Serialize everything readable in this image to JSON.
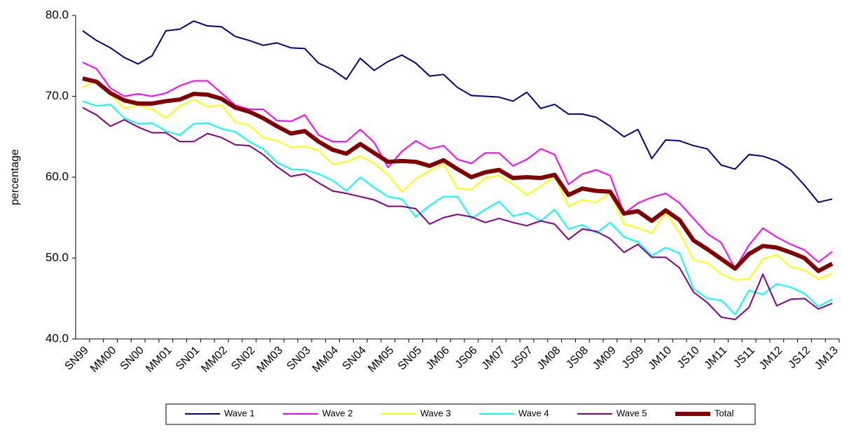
{
  "chart_data": {
    "type": "line",
    "ylabel": "percentage",
    "categories": [
      "SN99",
      null,
      "MM00",
      null,
      "SN00",
      null,
      "MM01",
      null,
      "SN01",
      null,
      "MM02",
      null,
      "SN02",
      null,
      "MM03",
      null,
      "SN03",
      null,
      "MM04",
      null,
      "SN04",
      null,
      "MM05",
      null,
      "SN05",
      null,
      "JM06",
      null,
      "JS06",
      null,
      "JM07",
      null,
      "JS07",
      null,
      "JM08",
      null,
      "JS08",
      null,
      "JM09",
      null,
      "JS09",
      null,
      "JM10",
      null,
      "JS10",
      null,
      "JM11",
      null,
      "JS11",
      null,
      "JM12",
      null,
      "JS12",
      null,
      "JM13"
    ],
    "series": [
      {
        "name": "Wave 1",
        "color": "#000080",
        "width": 2,
        "values": [
          78.1,
          76.9,
          76.0,
          74.8,
          74.0,
          75.0,
          78.1,
          78.3,
          79.3,
          78.7,
          78.6,
          77.4,
          76.9,
          76.3,
          76.6,
          76.0,
          75.9,
          74.1,
          73.3,
          72.1,
          74.7,
          73.2,
          74.3,
          75.1,
          74.1,
          72.5,
          72.7,
          71.1,
          70.1,
          70.0,
          69.9,
          69.4,
          70.5,
          68.5,
          69.0,
          67.8,
          67.8,
          67.4,
          66.3,
          65.0,
          65.9,
          62.3,
          64.6,
          64.5,
          63.9,
          63.5,
          61.5,
          61.0,
          62.8,
          62.6,
          62.0,
          60.9,
          59.0,
          56.9,
          57.3
        ]
      },
      {
        "name": "Wave 2",
        "color": "#ff00ff",
        "width": 2,
        "values": [
          74.2,
          73.4,
          71.0,
          70.0,
          70.3,
          70.0,
          70.4,
          71.3,
          71.9,
          71.9,
          70.4,
          68.9,
          68.4,
          68.4,
          67.0,
          66.9,
          67.7,
          65.2,
          64.4,
          64.4,
          65.9,
          64.3,
          61.2,
          63.2,
          64.5,
          63.5,
          63.9,
          62.2,
          61.7,
          63.0,
          63.0,
          61.4,
          62.2,
          63.5,
          62.8,
          59.1,
          60.4,
          60.9,
          60.2,
          55.5,
          56.8,
          57.5,
          58.0,
          56.8,
          54.9,
          53.0,
          51.9,
          48.7,
          51.6,
          53.7,
          52.6,
          51.7,
          51.0,
          49.5,
          50.8
        ]
      },
      {
        "name": "Wave 3",
        "color": "#ffff00",
        "width": 2,
        "values": [
          71.1,
          72.0,
          70.2,
          68.5,
          68.9,
          68.4,
          67.3,
          68.8,
          69.6,
          68.7,
          68.9,
          66.8,
          66.4,
          64.9,
          64.5,
          63.7,
          63.8,
          63.3,
          61.6,
          61.9,
          62.6,
          61.7,
          60.3,
          58.2,
          59.8,
          60.8,
          61.6,
          58.6,
          58.5,
          59.9,
          60.2,
          59.1,
          57.8,
          58.9,
          60.1,
          56.4,
          57.2,
          56.9,
          58.0,
          54.2,
          53.7,
          53.1,
          55.6,
          53.1,
          49.8,
          49.4,
          48.0,
          47.3,
          47.4,
          49.9,
          50.4,
          48.9,
          48.5,
          47.4,
          48.1
        ]
      },
      {
        "name": "Wave 4",
        "color": "#00ffff",
        "width": 2,
        "values": [
          69.4,
          68.8,
          69.0,
          67.3,
          66.6,
          66.7,
          65.7,
          65.2,
          66.6,
          66.7,
          66.0,
          65.6,
          64.4,
          63.5,
          61.8,
          61.0,
          60.9,
          60.4,
          59.6,
          58.3,
          60.0,
          58.7,
          57.6,
          57.3,
          55.1,
          56.5,
          57.6,
          57.6,
          54.9,
          56.0,
          57.0,
          55.2,
          55.6,
          54.6,
          56.0,
          53.6,
          54.1,
          53.1,
          54.4,
          52.6,
          52.0,
          50.3,
          51.3,
          50.6,
          46.2,
          45.0,
          44.8,
          43.0,
          46.0,
          45.5,
          46.8,
          46.4,
          45.6,
          44.0,
          44.9
        ]
      },
      {
        "name": "Wave 5",
        "color": "#800080",
        "width": 2,
        "values": [
          68.6,
          67.7,
          66.3,
          67.1,
          66.2,
          65.5,
          65.5,
          64.4,
          64.4,
          65.4,
          64.9,
          64.0,
          63.9,
          62.8,
          61.3,
          60.1,
          60.4,
          59.3,
          58.3,
          58.0,
          57.6,
          57.2,
          56.4,
          56.4,
          56.1,
          54.2,
          55.0,
          55.4,
          55.1,
          54.4,
          54.9,
          54.4,
          54.0,
          54.6,
          54.2,
          52.3,
          53.6,
          53.3,
          52.4,
          50.7,
          51.7,
          50.1,
          50.1,
          48.8,
          45.8,
          44.5,
          42.7,
          42.4,
          43.9,
          48.0,
          44.1,
          44.9,
          45.0,
          43.7,
          44.4
        ]
      },
      {
        "name": "Total",
        "color": "#800000",
        "width": 6,
        "values": [
          72.2,
          71.8,
          70.4,
          69.5,
          69.1,
          69.1,
          69.4,
          69.6,
          70.3,
          70.2,
          69.7,
          68.6,
          68.1,
          67.3,
          66.3,
          65.4,
          65.7,
          64.4,
          63.4,
          62.9,
          64.1,
          63.0,
          61.9,
          62.0,
          61.9,
          61.4,
          62.1,
          61.0,
          60.0,
          60.6,
          60.9,
          59.9,
          60.0,
          59.9,
          60.3,
          57.8,
          58.6,
          58.3,
          58.2,
          55.5,
          55.8,
          54.6,
          55.9,
          54.7,
          52.2,
          51.1,
          49.9,
          48.7,
          50.5,
          51.5,
          51.3,
          50.7,
          50.0,
          48.4,
          49.3
        ]
      }
    ],
    "ylim": [
      40,
      80
    ],
    "yticks": [
      {
        "value": 40,
        "label": "40.0"
      },
      {
        "value": 50,
        "label": "50.0"
      },
      {
        "value": 60,
        "label": "60.0"
      },
      {
        "value": 70,
        "label": "70.0"
      },
      {
        "value": 80,
        "label": "80.0"
      }
    ],
    "grid": false,
    "legend": "bottom"
  }
}
